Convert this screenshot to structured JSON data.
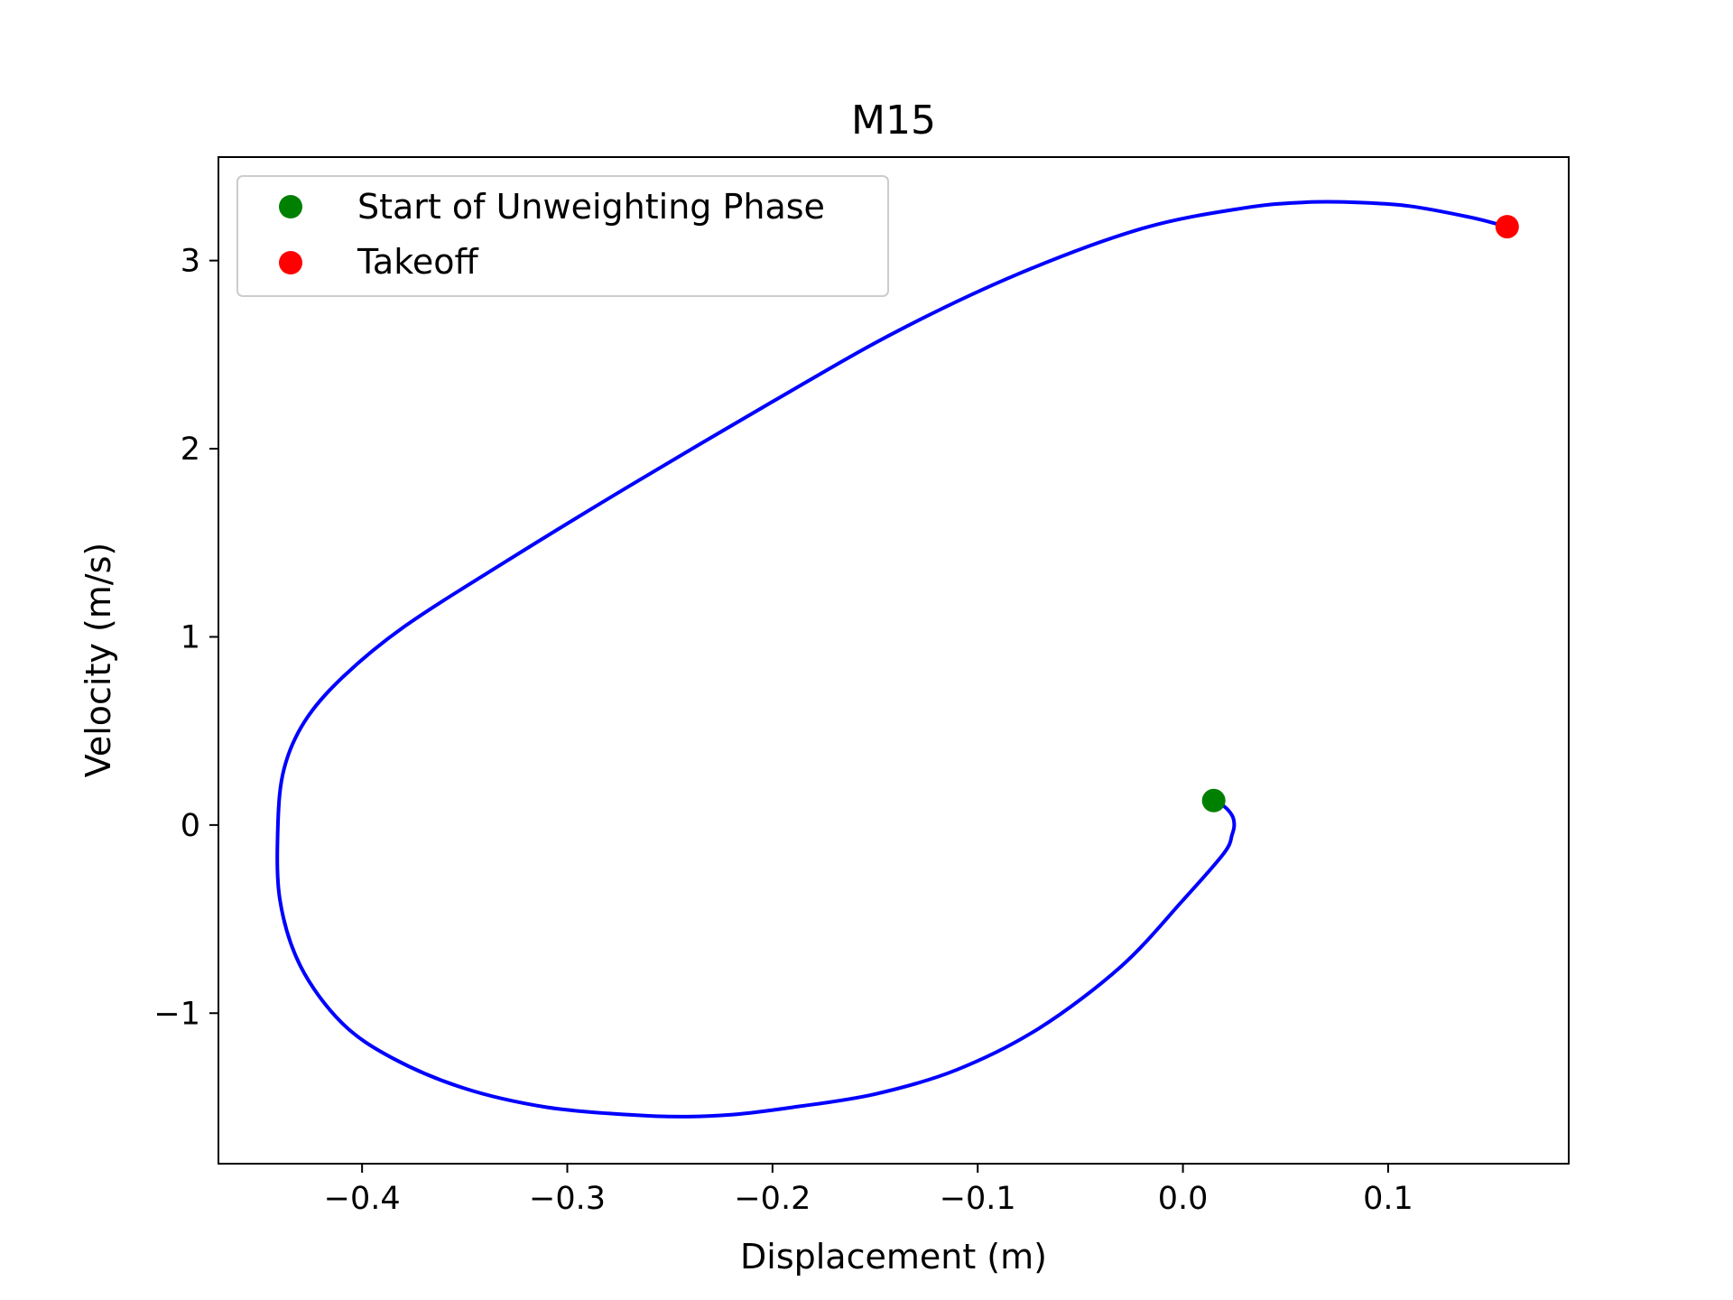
{
  "chart_data": {
    "type": "line",
    "title": "M15",
    "xlabel": "Displacement (m)",
    "ylabel": "Velocity (m/s)",
    "xlim": [
      -0.47,
      0.188
    ],
    "ylim": [
      -1.8,
      3.55
    ],
    "xticks": [
      -0.4,
      -0.3,
      -0.2,
      -0.1,
      0.0,
      0.1
    ],
    "xtick_labels": [
      "−0.4",
      "−0.3",
      "−0.2",
      "−0.1",
      "0.0",
      "0.1"
    ],
    "yticks": [
      -1,
      0,
      1,
      2,
      3
    ],
    "ytick_labels": [
      "−1",
      "0",
      "1",
      "2",
      "3"
    ],
    "grid": false,
    "legend_position": "top-left",
    "series": [
      {
        "color": "#0000ff",
        "x": [
          0.015,
          0.02,
          0.024,
          0.025,
          0.024,
          0.02,
          0.0,
          -0.03,
          -0.07,
          -0.11,
          -0.15,
          -0.19,
          -0.22,
          -0.245,
          -0.27,
          -0.31,
          -0.35,
          -0.385,
          -0.41,
          -0.43,
          -0.44,
          -0.441,
          -0.438,
          -0.428,
          -0.41,
          -0.38,
          -0.33,
          -0.27,
          -0.2,
          -0.14,
          -0.08,
          -0.02,
          0.03,
          0.06,
          0.082,
          0.11,
          0.14,
          0.158
        ],
        "y": [
          0.13,
          0.1,
          0.05,
          0.0,
          -0.05,
          -0.15,
          -0.4,
          -0.75,
          -1.08,
          -1.3,
          -1.43,
          -1.5,
          -1.54,
          -1.55,
          -1.54,
          -1.5,
          -1.4,
          -1.24,
          -1.05,
          -0.75,
          -0.4,
          0.0,
          0.3,
          0.55,
          0.78,
          1.05,
          1.4,
          1.8,
          2.25,
          2.62,
          2.93,
          3.17,
          3.28,
          3.31,
          3.31,
          3.29,
          3.23,
          3.18
        ]
      },
      {
        "name": "Start of Unweighting Phase",
        "color": "#008000",
        "marker": "circle",
        "x": [
          0.015
        ],
        "y": [
          0.13
        ]
      },
      {
        "name": "Takeoff",
        "color": "#ff0000",
        "marker": "circle",
        "x": [
          0.158
        ],
        "y": [
          3.18
        ]
      }
    ]
  }
}
